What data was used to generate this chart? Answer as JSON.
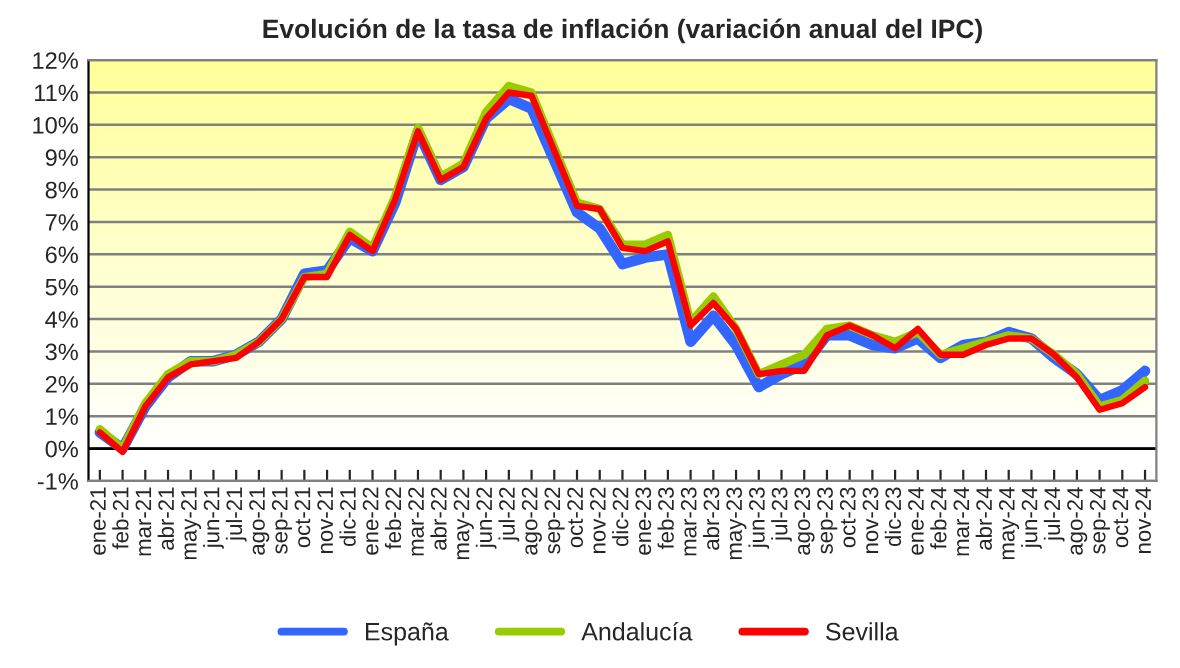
{
  "chart_data": {
    "type": "line",
    "title": "Evolución de la tasa de inflación (variación anual del IPC)",
    "categories": [
      "ene-21",
      "feb-21",
      "mar-21",
      "abr-21",
      "may-21",
      "jun-21",
      "jul-21",
      "ago-21",
      "sep-21",
      "oct-21",
      "nov-21",
      "dic-21",
      "ene-22",
      "feb-22",
      "mar-22",
      "abr-22",
      "may-22",
      "jun-22",
      "jul-22",
      "ago-22",
      "sep-22",
      "oct-22",
      "nov-22",
      "dic-22",
      "ene-23",
      "feb-23",
      "mar-23",
      "abr-23",
      "may-23",
      "jun-23",
      "jul-23",
      "ago-23",
      "sep-23",
      "oct-23",
      "nov-23",
      "dic-23",
      "ene-24",
      "feb-24",
      "mar-24",
      "abr-24",
      "may-24",
      "jun-24",
      "jul-24",
      "ago-24",
      "sep-24",
      "oct-24",
      "nov-24"
    ],
    "series": [
      {
        "name": "España",
        "color": "#3366ff",
        "values": [
          0.5,
          0.0,
          1.3,
          2.2,
          2.7,
          2.7,
          2.9,
          3.3,
          4.0,
          5.4,
          5.5,
          6.5,
          6.1,
          7.6,
          9.8,
          8.3,
          8.7,
          10.2,
          10.8,
          10.5,
          8.9,
          7.3,
          6.8,
          5.7,
          5.9,
          6.0,
          3.3,
          4.1,
          3.2,
          1.9,
          2.3,
          2.6,
          3.5,
          3.5,
          3.2,
          3.1,
          3.4,
          2.8,
          3.2,
          3.3,
          3.6,
          3.4,
          2.8,
          2.3,
          1.5,
          1.8,
          2.4
        ]
      },
      {
        "name": "Andalucía",
        "color": "#99cc00",
        "values": [
          0.6,
          0.0,
          1.4,
          2.3,
          2.7,
          2.7,
          2.9,
          3.3,
          4.0,
          5.3,
          5.4,
          6.7,
          6.2,
          7.8,
          9.9,
          8.4,
          8.8,
          10.4,
          11.2,
          11.0,
          9.3,
          7.6,
          7.4,
          6.3,
          6.3,
          6.6,
          3.9,
          4.7,
          3.7,
          2.3,
          2.6,
          2.9,
          3.7,
          3.8,
          3.5,
          3.3,
          3.6,
          2.9,
          3.1,
          3.3,
          3.5,
          3.4,
          2.9,
          2.3,
          1.3,
          1.5,
          2.1
        ]
      },
      {
        "name": "Sevilla",
        "color": "#ff0000",
        "values": [
          0.5,
          -0.1,
          1.3,
          2.2,
          2.6,
          2.7,
          2.8,
          3.3,
          4.0,
          5.3,
          5.3,
          6.6,
          6.1,
          7.7,
          9.8,
          8.3,
          8.7,
          10.2,
          11.0,
          10.9,
          9.2,
          7.5,
          7.4,
          6.2,
          6.1,
          6.4,
          3.8,
          4.5,
          3.7,
          2.3,
          2.4,
          2.4,
          3.5,
          3.8,
          3.5,
          3.1,
          3.7,
          2.9,
          2.9,
          3.2,
          3.4,
          3.4,
          2.9,
          2.2,
          1.2,
          1.4,
          1.9
        ]
      }
    ],
    "ylim": [
      -1,
      12
    ],
    "yticks": [
      {
        "value": -1,
        "label": "-1%"
      },
      {
        "value": 0,
        "label": "0%"
      },
      {
        "value": 1,
        "label": "1%"
      },
      {
        "value": 2,
        "label": "2%"
      },
      {
        "value": 3,
        "label": "3%"
      },
      {
        "value": 4,
        "label": "4%"
      },
      {
        "value": 5,
        "label": "5%"
      },
      {
        "value": 6,
        "label": "6%"
      },
      {
        "value": 7,
        "label": "7%"
      },
      {
        "value": 8,
        "label": "8%"
      },
      {
        "value": 9,
        "label": "9%"
      },
      {
        "value": 10,
        "label": "10%"
      },
      {
        "value": 11,
        "label": "11%"
      },
      {
        "value": 12,
        "label": "12%"
      }
    ],
    "grid": "y",
    "legend": "bottom",
    "line_style": "solid",
    "marker": "none"
  }
}
